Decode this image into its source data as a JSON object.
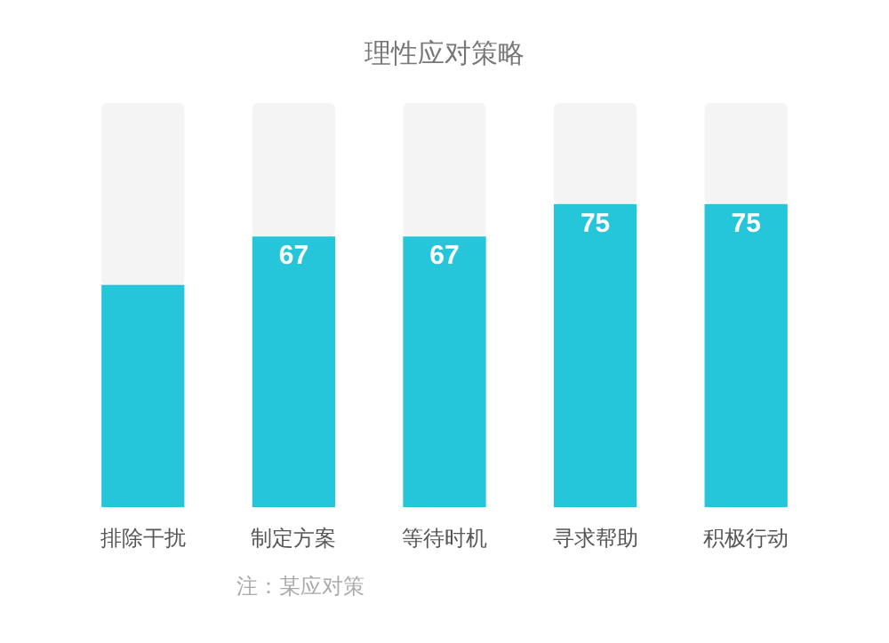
{
  "chart_data": {
    "type": "bar",
    "title": "理性应对策略",
    "categories": [
      "排除干扰",
      "制定方案",
      "等待时机",
      "寻求帮助",
      "积极行动"
    ],
    "series": [
      {
        "color": "#26c6da",
        "values": [
          55,
          67,
          67,
          75,
          75
        ],
        "value_labels": [
          null,
          "67",
          "67",
          "75",
          "75"
        ]
      },
      {
        "color": "#f4f4f4",
        "values": [
          45,
          33,
          33,
          25,
          25
        ]
      }
    ],
    "stacked": true,
    "annotations": [
      "注：某应对策"
    ]
  }
}
